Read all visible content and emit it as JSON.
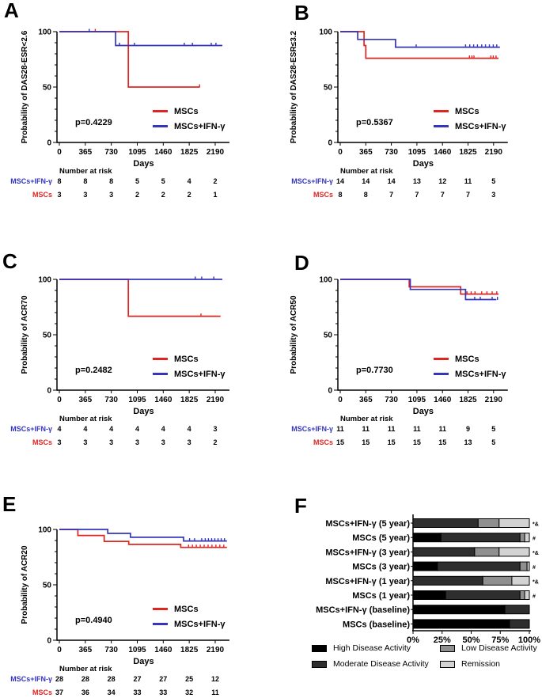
{
  "colors": {
    "red": "#e02521",
    "blue": "#3434bd",
    "axis": "#000000"
  },
  "chart_data": [
    {
      "type": "line",
      "panel": "A",
      "ylabel": "Probability of DAS28-ESR<2.6",
      "xlabel": "Days",
      "p_value": "p=0.4229",
      "xticks": [
        0,
        365,
        730,
        1095,
        1460,
        1825,
        2190
      ],
      "yticks": [
        0,
        50,
        100
      ],
      "ylim": [
        0,
        100
      ],
      "legend_position": "inside-right",
      "series": [
        {
          "name": "MSCs",
          "color": "red",
          "steps": [
            [
              0,
              100
            ],
            [
              970,
              100
            ],
            [
              970,
              50
            ],
            [
              1970,
              50
            ]
          ],
          "censors": [
            [
              505,
              100
            ],
            [
              1970,
              50
            ]
          ]
        },
        {
          "name": "MSCs+IFN-γ",
          "color": "blue",
          "steps": [
            [
              0,
              100
            ],
            [
              790,
              100
            ],
            [
              790,
              87.5
            ],
            [
              2290,
              87.5
            ]
          ],
          "censors": [
            [
              420,
              100
            ],
            [
              845,
              87.5
            ],
            [
              1055,
              87.5
            ],
            [
              1755,
              87.5
            ],
            [
              1870,
              87.5
            ],
            [
              2135,
              87.5
            ],
            [
              2200,
              87.5
            ]
          ]
        }
      ],
      "number_at_risk": {
        "header": "Number at risk",
        "rows": [
          {
            "label": "MSCs+IFN-γ",
            "color": "blue",
            "values": [
              8,
              8,
              8,
              5,
              5,
              4,
              2
            ]
          },
          {
            "label": "MSCs",
            "color": "red",
            "values": [
              3,
              3,
              3,
              2,
              2,
              2,
              1
            ]
          }
        ]
      }
    },
    {
      "type": "line",
      "panel": "B",
      "ylabel": "Probability of DAS28-ESR≤3.2",
      "xlabel": "Days",
      "p_value": "p=0.5367",
      "xticks": [
        0,
        365,
        730,
        1095,
        1460,
        1825,
        2190
      ],
      "yticks": [
        0,
        50,
        100
      ],
      "ylim": [
        0,
        100
      ],
      "legend_position": "inside-right",
      "series": [
        {
          "name": "MSCs",
          "color": "red",
          "steps": [
            [
              0,
              100
            ],
            [
              340,
              100
            ],
            [
              340,
              87.5
            ],
            [
              365,
              87.5
            ],
            [
              365,
              76
            ],
            [
              2260,
              76
            ]
          ],
          "censors": [
            [
              1845,
              76
            ],
            [
              1880,
              76
            ],
            [
              1910,
              76
            ],
            [
              2150,
              76
            ],
            [
              2185,
              76
            ],
            [
              2225,
              76
            ]
          ]
        },
        {
          "name": "MSCs+IFN-γ",
          "color": "blue",
          "steps": [
            [
              0,
              100
            ],
            [
              250,
              100
            ],
            [
              250,
              93
            ],
            [
              790,
              93
            ],
            [
              790,
              86
            ],
            [
              2280,
              86
            ]
          ],
          "censors": [
            [
              1085,
              86
            ],
            [
              1790,
              86
            ],
            [
              1850,
              86
            ],
            [
              1905,
              86
            ],
            [
              1960,
              86
            ],
            [
              2020,
              86
            ],
            [
              2075,
              86
            ],
            [
              2130,
              86
            ],
            [
              2185,
              86
            ],
            [
              2235,
              86
            ]
          ]
        }
      ],
      "number_at_risk": {
        "header": "Number at risk",
        "rows": [
          {
            "label": "MSCs+IFN-γ",
            "color": "blue",
            "values": [
              14,
              14,
              14,
              13,
              12,
              11,
              5
            ]
          },
          {
            "label": "MSCs",
            "color": "red",
            "values": [
              8,
              8,
              7,
              7,
              7,
              7,
              3
            ]
          }
        ]
      }
    },
    {
      "type": "line",
      "panel": "C",
      "ylabel": "Probability of ACR70",
      "xlabel": "Days",
      "p_value": "p=0.2482",
      "xticks": [
        0,
        365,
        730,
        1095,
        1460,
        1825,
        2190
      ],
      "yticks": [
        0,
        50,
        100
      ],
      "ylim": [
        0,
        100
      ],
      "legend_position": "inside-right",
      "series": [
        {
          "name": "MSCs",
          "color": "red",
          "steps": [
            [
              0,
              100
            ],
            [
              970,
              100
            ],
            [
              970,
              66.7
            ],
            [
              2265,
              66.7
            ]
          ],
          "censors": [
            [
              1990,
              66.7
            ]
          ]
        },
        {
          "name": "MSCs+IFN-γ",
          "color": "blue",
          "steps": [
            [
              0,
              100
            ],
            [
              2290,
              100
            ]
          ],
          "censors": [
            [
              1910,
              100
            ],
            [
              2000,
              100
            ],
            [
              2170,
              100
            ]
          ]
        }
      ],
      "number_at_risk": {
        "header": "Number at risk",
        "rows": [
          {
            "label": "MSCs+IFN-γ",
            "color": "blue",
            "values": [
              4,
              4,
              4,
              4,
              4,
              4,
              3
            ]
          },
          {
            "label": "MSCs",
            "color": "red",
            "values": [
              3,
              3,
              3,
              3,
              3,
              3,
              2
            ]
          }
        ]
      }
    },
    {
      "type": "line",
      "panel": "D",
      "ylabel": "Probability of ACR50",
      "xlabel": "Days",
      "p_value": "p=0.7730",
      "xticks": [
        0,
        365,
        730,
        1095,
        1460,
        1825,
        2190
      ],
      "yticks": [
        0,
        50,
        100
      ],
      "ylim": [
        0,
        100
      ],
      "legend_position": "inside-right",
      "series": [
        {
          "name": "MSCs",
          "color": "red",
          "steps": [
            [
              0,
              100
            ],
            [
              985,
              100
            ],
            [
              985,
              93.3
            ],
            [
              1720,
              93.3
            ],
            [
              1720,
              86.7
            ],
            [
              2260,
              86.7
            ]
          ],
          "censors": [
            [
              1810,
              86.7
            ],
            [
              1870,
              86.7
            ],
            [
              1925,
              86.7
            ],
            [
              2020,
              86.7
            ],
            [
              2095,
              86.7
            ],
            [
              2170,
              86.7
            ],
            [
              2235,
              86.7
            ]
          ]
        },
        {
          "name": "MSCs+IFN-γ",
          "color": "blue",
          "steps": [
            [
              0,
              100
            ],
            [
              1000,
              100
            ],
            [
              1000,
              90.9
            ],
            [
              1790,
              90.9
            ],
            [
              1790,
              81.8
            ],
            [
              2230,
              81.8
            ]
          ],
          "censors": [
            [
              1920,
              81.8
            ],
            [
              2000,
              81.8
            ],
            [
              2170,
              81.8
            ],
            [
              2245,
              81.8
            ]
          ]
        }
      ],
      "number_at_risk": {
        "header": "Number at risk",
        "rows": [
          {
            "label": "MSCs+IFN-γ",
            "color": "blue",
            "values": [
              11,
              11,
              11,
              11,
              11,
              9,
              5
            ]
          },
          {
            "label": "MSCs",
            "color": "red",
            "values": [
              15,
              15,
              15,
              15,
              15,
              13,
              5
            ]
          }
        ]
      }
    },
    {
      "type": "line",
      "panel": "E",
      "ylabel": "Probability of ACR20",
      "xlabel": "Days",
      "p_value": "p=0.4940",
      "xticks": [
        0,
        365,
        730,
        1095,
        1460,
        1825,
        2190
      ],
      "yticks": [
        0,
        50,
        100
      ],
      "ylim": [
        0,
        100
      ],
      "legend_position": "inside-right",
      "series": [
        {
          "name": "MSCs",
          "color": "red",
          "steps": [
            [
              0,
              100
            ],
            [
              260,
              100
            ],
            [
              260,
              94.6
            ],
            [
              630,
              94.6
            ],
            [
              630,
              89.2
            ],
            [
              975,
              89.2
            ],
            [
              975,
              86.5
            ],
            [
              1705,
              86.5
            ],
            [
              1705,
              83.8
            ],
            [
              2355,
              83.8
            ]
          ],
          "censors": [
            [
              1815,
              83.8
            ],
            [
              1870,
              83.8
            ],
            [
              1925,
              83.8
            ],
            [
              1980,
              83.8
            ],
            [
              2035,
              83.8
            ],
            [
              2090,
              83.8
            ],
            [
              2145,
              83.8
            ],
            [
              2200,
              83.8
            ],
            [
              2255,
              83.8
            ],
            [
              2310,
              83.8
            ]
          ]
        },
        {
          "name": "MSCs+IFN-γ",
          "color": "blue",
          "steps": [
            [
              0,
              100
            ],
            [
              680,
              100
            ],
            [
              680,
              96.4
            ],
            [
              1000,
              96.4
            ],
            [
              1000,
              92.9
            ],
            [
              1745,
              92.9
            ],
            [
              1745,
              89.6
            ],
            [
              2355,
              89.6
            ]
          ],
          "censors": [
            [
              1830,
              89.6
            ],
            [
              1900,
              89.6
            ],
            [
              2000,
              89.6
            ],
            [
              2050,
              89.6
            ],
            [
              2095,
              89.6
            ],
            [
              2140,
              89.6
            ],
            [
              2185,
              89.6
            ],
            [
              2230,
              89.6
            ],
            [
              2275,
              89.6
            ],
            [
              2320,
              89.6
            ]
          ]
        }
      ],
      "number_at_risk": {
        "header": "Number at risk",
        "rows": [
          {
            "label": "MSCs+IFN-γ",
            "color": "blue",
            "values": [
              28,
              28,
              28,
              27,
              27,
              25,
              12
            ]
          },
          {
            "label": "MSCs",
            "color": "red",
            "values": [
              37,
              36,
              34,
              33,
              33,
              32,
              11
            ]
          }
        ]
      }
    },
    {
      "type": "bar",
      "panel": "F",
      "orientation": "horizontal",
      "stacked": true,
      "xlim": [
        0,
        100
      ],
      "xticks": [
        "0%",
        "25%",
        "50%",
        "75%",
        "100%"
      ],
      "categories": [
        "MSCs+IFN-γ (5 year)",
        "MSCs (5 year)",
        "MSCs+IFN-γ (3 year)",
        "MSCs (3 year)",
        "MSCs+IFN-γ (1 year)",
        "MSCs (1 year)",
        "MSCs+IFN-γ (baseline)",
        "MSCs (baseline)"
      ],
      "series": [
        {
          "name": "High Disease Activity",
          "color": "#000000",
          "values": [
            0,
            24,
            0,
            21,
            0,
            28,
            79,
            83
          ]
        },
        {
          "name": "Moderate Disease Activity",
          "color": "#2e2e2e",
          "values": [
            56,
            68,
            53,
            71,
            60,
            64,
            21,
            17
          ]
        },
        {
          "name": "Low Disease Activity",
          "color": "#8f8f8f",
          "values": [
            18,
            4,
            21,
            6,
            25,
            4,
            0,
            0
          ]
        },
        {
          "name": "Remission",
          "color": "#d3d3d3",
          "values": [
            26,
            4,
            26,
            2,
            15,
            4,
            0,
            0
          ]
        }
      ],
      "annotations": [
        "*&",
        "#",
        "*&",
        "#",
        "*&",
        "#",
        "",
        ""
      ]
    }
  ]
}
